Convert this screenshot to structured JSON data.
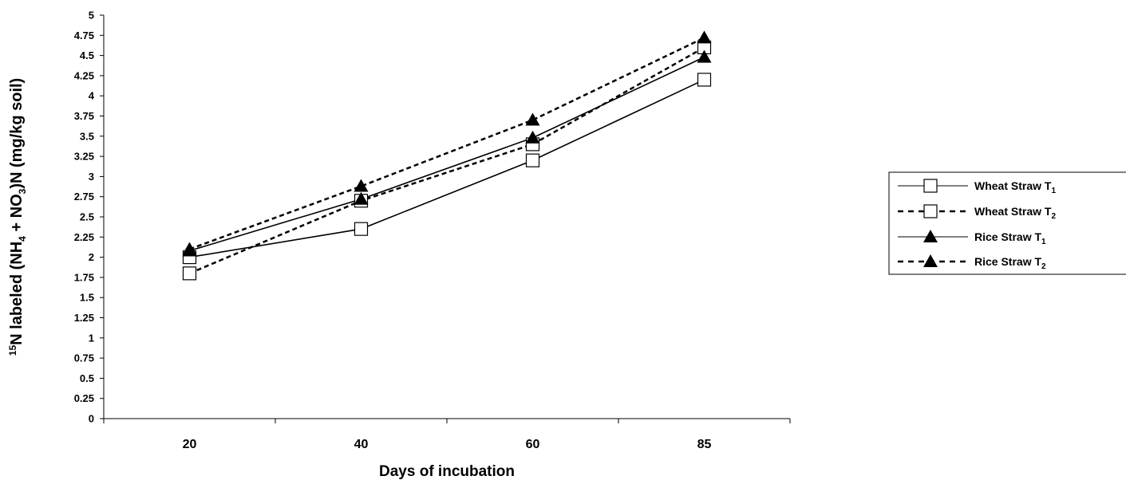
{
  "chart_data": {
    "type": "line",
    "xlabel": "Days of incubation",
    "ylabel": {
      "prefix_sup": "15",
      "text1": "N labeled (NH",
      "sub1": "4",
      "text2": " + NO",
      "sub2": "3",
      "text3": ")N (mg/kg soil)"
    },
    "categories": [
      "20",
      "40",
      "60",
      "85"
    ],
    "ylim": [
      0,
      5
    ],
    "ystep": 0.25,
    "yticks": [
      "0",
      "0.25",
      "0.5",
      "0.75",
      "1",
      "1.25",
      "1.5",
      "1.75",
      "2",
      "2.25",
      "2.5",
      "2.75",
      "3",
      "3.25",
      "3.5",
      "3.75",
      "4",
      "4.25",
      "4.5",
      "4.75",
      "5"
    ],
    "grid": false,
    "legend_position": "right",
    "series": [
      {
        "name": "Wheat Straw T",
        "name_sub": "1",
        "marker": "square",
        "line": "solid",
        "values": [
          2.0,
          2.35,
          3.2,
          4.2
        ]
      },
      {
        "name": "Wheat Straw T",
        "name_sub": "2",
        "marker": "square",
        "line": "dashed",
        "values": [
          1.8,
          2.7,
          3.4,
          4.6
        ]
      },
      {
        "name": "Rice Straw T",
        "name_sub": "1",
        "marker": "triangle",
        "line": "solid",
        "values": [
          2.08,
          2.72,
          3.48,
          4.48
        ]
      },
      {
        "name": "Rice Straw T",
        "name_sub": "2",
        "marker": "triangle",
        "line": "dashed",
        "values": [
          2.1,
          2.88,
          3.7,
          4.72
        ]
      }
    ]
  }
}
